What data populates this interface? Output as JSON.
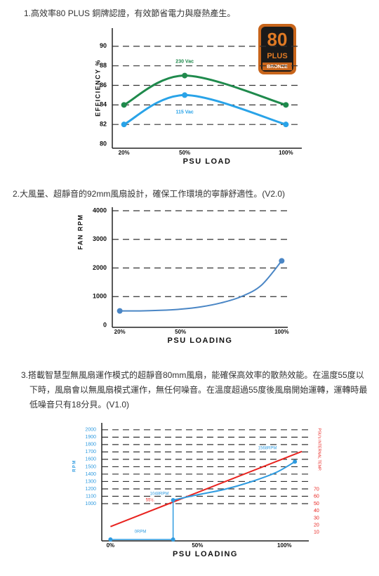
{
  "sections": [
    {
      "caption": "1.高效率80 PLUS 銅牌認證，有效節省電力與廢熱產生。"
    },
    {
      "caption": "2.大風量、超靜音的92mm風扇設計，確保工作環境的寧靜舒適性。(V2.0)"
    },
    {
      "caption": "3.搭載智慧型無風扇運作模式的超靜音80mm風扇，能確保高效率的散熱效能。在溫度55度以下時，風扇會以無風扇模式運作，無任何噪音。在溫度超過55度後風扇開始運轉，運轉時最低噪音只有18分貝。(V1.0)"
    }
  ],
  "badge": {
    "number": "80",
    "brand": "PLUS",
    "level": "BRONZE"
  },
  "chart_data": [
    {
      "type": "line",
      "y_label": "EFFICIENCY %",
      "x_label": "PSU LOAD",
      "smooth": true,
      "grid": true,
      "x": [
        20,
        50,
        100
      ],
      "xlim": [
        17,
        103
      ],
      "xticks": [
        {
          "value": 20,
          "label": "20%"
        },
        {
          "value": 50,
          "label": "50%"
        },
        {
          "value": 100,
          "label": "100%"
        }
      ],
      "ylim": [
        80,
        91.5
      ],
      "yticks": [
        80,
        82,
        84,
        86,
        88,
        90
      ],
      "series": [
        {
          "name": "230 Vac",
          "color": "#1f8a4c",
          "markers": "all",
          "values": [
            84,
            87,
            84
          ]
        },
        {
          "name": "115 Vac",
          "color": "#29a3e8",
          "markers": "all",
          "values": [
            82,
            85,
            82
          ]
        }
      ]
    },
    {
      "type": "line",
      "y_label": "FAN RPM",
      "x_label": "PSU LOADING",
      "smooth": true,
      "grid": true,
      "x": [
        20,
        30,
        40,
        50,
        60,
        70,
        80,
        90,
        100
      ],
      "xlim": [
        17,
        103
      ],
      "xticks": [
        {
          "value": 20,
          "label": "20%"
        },
        {
          "value": 50,
          "label": "50%"
        },
        {
          "value": 100,
          "label": "100%"
        }
      ],
      "ylim": [
        0,
        4000
      ],
      "yticks": [
        0,
        1000,
        2000,
        3000,
        4000
      ],
      "series": [
        {
          "color": "#4a86c5",
          "markers": "ends",
          "values": [
            500,
            500,
            520,
            560,
            640,
            780,
            1000,
            1400,
            2250
          ]
        }
      ]
    },
    {
      "type": "line",
      "y_label": "RPM",
      "y2_label": "PSU's INTERNAL TEMP.",
      "x_label": "PSU LOADING",
      "smooth": true,
      "grid": true,
      "xlim": [
        -5,
        114
      ],
      "xticks": [
        {
          "value": 0,
          "label": "0%"
        },
        {
          "value": 50,
          "label": "50%"
        },
        {
          "value": 100,
          "label": "100%"
        }
      ],
      "ylim": [
        515,
        2065
      ],
      "yticks": [
        1000,
        1100,
        1200,
        1300,
        1400,
        1500,
        1600,
        1700,
        1800,
        1900,
        2000
      ],
      "y2lim": [
        0,
        160
      ],
      "y2ticks": [
        10,
        20,
        30,
        40,
        50,
        60,
        70
      ],
      "series": [
        {
          "color": "#e8231f",
          "axis": "y2",
          "markers": "none",
          "x": [
            0,
            110
          ],
          "values": [
            18,
            123
          ]
        },
        {
          "color": "#2f9be0",
          "markers": "ends",
          "x": [
            36,
            50,
            65,
            80,
            95,
            106
          ],
          "values": [
            1048,
            1120,
            1190,
            1290,
            1420,
            1568
          ]
        }
      ],
      "annotations": [
        "1568RPM",
        "1048RPM",
        "55'c.",
        "0RPM"
      ]
    }
  ]
}
